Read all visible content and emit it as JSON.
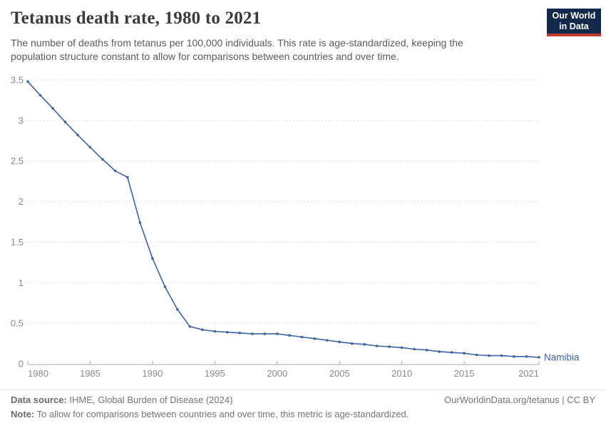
{
  "header": {
    "title": "Tetanus death rate, 1980 to 2021",
    "subtitle": "The number of deaths from tetanus per 100,000 individuals. This rate is age-standardized, keeping the population structure constant to allow for comparisons between countries and over time.",
    "logo": {
      "line1": "Our World",
      "line2": "in Data",
      "bg_color": "#12294b",
      "accent_color": "#c0392b"
    }
  },
  "chart_data": {
    "type": "line",
    "title": "Tetanus death rate, 1980 to 2021",
    "xlabel": "",
    "ylabel": "",
    "xlim": [
      1980,
      2021
    ],
    "ylim": [
      0,
      3.5
    ],
    "grid": "horizontal-dashed",
    "legend_position": "end-of-line-label",
    "x_ticks": [
      1980,
      1985,
      1990,
      1995,
      2000,
      2005,
      2010,
      2015,
      2021
    ],
    "y_ticks": [
      "0",
      "0.5",
      "1",
      "1.5",
      "2",
      "2.5",
      "3",
      "3.5"
    ],
    "x": [
      1980,
      1981,
      1982,
      1983,
      1984,
      1985,
      1986,
      1987,
      1988,
      1989,
      1990,
      1991,
      1992,
      1993,
      1994,
      1995,
      1996,
      1997,
      1998,
      1999,
      2000,
      2001,
      2002,
      2003,
      2004,
      2005,
      2006,
      2007,
      2008,
      2009,
      2010,
      2011,
      2012,
      2013,
      2014,
      2015,
      2016,
      2017,
      2018,
      2019,
      2020,
      2021
    ],
    "series": [
      {
        "name": "Namibia",
        "color": "#3d64a5",
        "values": [
          3.48,
          3.31,
          3.15,
          2.98,
          2.82,
          2.67,
          2.52,
          2.38,
          2.3,
          1.74,
          1.3,
          0.95,
          0.67,
          0.46,
          0.42,
          0.4,
          0.39,
          0.38,
          0.37,
          0.37,
          0.37,
          0.35,
          0.33,
          0.31,
          0.29,
          0.27,
          0.25,
          0.24,
          0.22,
          0.21,
          0.2,
          0.18,
          0.17,
          0.15,
          0.14,
          0.13,
          0.11,
          0.1,
          0.1,
          0.09,
          0.09,
          0.08
        ]
      }
    ]
  },
  "footer": {
    "datasource_label": "Data source:",
    "datasource_text": " IHME, Global Burden of Disease (2024)",
    "link_text": "OurWorldinData.org/tetanus | CC BY",
    "note_label": "Note:",
    "note_text": " To allow for comparisons between countries and over time, this metric is age-standardized."
  }
}
